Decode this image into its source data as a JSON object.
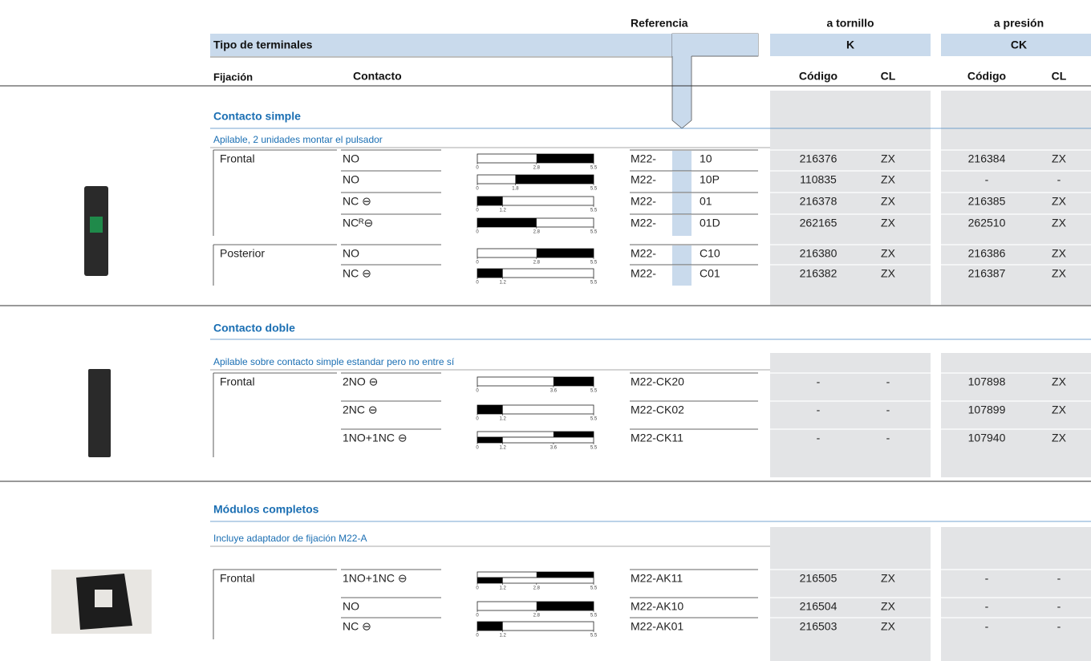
{
  "header": {
    "referencia": "Referencia",
    "a_tornillo": "a tornillo",
    "a_presion": "a presión",
    "tipo": "Tipo de terminales",
    "k": "K",
    "ck": "CK",
    "fijacion": "Fijación",
    "contacto": "Contacto",
    "codigo_k": "Código",
    "cl_k": "CL",
    "codigo_ck": "Código",
    "cl_ck": "CL"
  },
  "sections": [
    {
      "title": "Contacto simple",
      "subtitle": "Apilable, 2 unidades montar el pulsador",
      "rows": [
        {
          "fijacion": "Frontal",
          "contacto": "NO",
          "diagram": {
            "ticks": [
              0,
              2.8,
              5.5
            ],
            "tracks": [
              [
                2.8,
                5.5
              ]
            ]
          },
          "ref_prefix": "M22-",
          "ref_suffix": "10",
          "k_code": "216376",
          "k_cl": "ZX",
          "ck_code": "216384",
          "ck_cl": "ZX"
        },
        {
          "contacto": "NO",
          "diagram": {
            "ticks": [
              0,
              1.8,
              5.5
            ],
            "tracks": [
              [
                1.8,
                5.5
              ]
            ]
          },
          "ref_prefix": "M22-",
          "ref_suffix": "10P",
          "k_code": "110835",
          "k_cl": "ZX",
          "ck_code": "-",
          "ck_cl": "-"
        },
        {
          "contacto": "NC ⊖",
          "diagram": {
            "ticks": [
              0,
              1.2,
              5.5
            ],
            "tracks": [
              [
                0,
                1.2
              ]
            ]
          },
          "ref_prefix": "M22-",
          "ref_suffix": "01",
          "k_code": "216378",
          "k_cl": "ZX",
          "ck_code": "216385",
          "ck_cl": "ZX"
        },
        {
          "contacto": "NCᴿ⊖",
          "diagram": {
            "ticks": [
              0,
              2.8,
              5.5
            ],
            "tracks": [
              [
                0,
                2.8
              ]
            ]
          },
          "ref_prefix": "M22-",
          "ref_suffix": "01D",
          "k_code": "262165",
          "k_cl": "ZX",
          "ck_code": "262510",
          "ck_cl": "ZX"
        },
        {
          "fijacion": "Posterior",
          "contacto": "NO",
          "diagram": {
            "ticks": [
              0,
              2.8,
              5.5
            ],
            "tracks": [
              [
                2.8,
                5.5
              ]
            ]
          },
          "ref_prefix": "M22-",
          "ref_suffix": "C10",
          "k_code": "216380",
          "k_cl": "ZX",
          "ck_code": "216386",
          "ck_cl": "ZX"
        },
        {
          "contacto": "NC ⊖",
          "diagram": {
            "ticks": [
              0,
              1.2,
              5.5
            ],
            "tracks": [
              [
                0,
                1.2
              ]
            ]
          },
          "ref_prefix": "M22-",
          "ref_suffix": "C01",
          "k_code": "216382",
          "k_cl": "ZX",
          "ck_code": "216387",
          "ck_cl": "ZX"
        }
      ]
    },
    {
      "title": "Contacto doble",
      "subtitle": "Apilable sobre contacto simple estandar pero no entre sí",
      "rows": [
        {
          "fijacion": "Frontal",
          "contacto": "2NO ⊖",
          "diagram": {
            "ticks": [
              0,
              3.6,
              5.5
            ],
            "tracks": [
              [
                3.6,
                5.5
              ]
            ]
          },
          "ref": "M22-CK20",
          "k_code": "-",
          "k_cl": "-",
          "ck_code": "107898",
          "ck_cl": "ZX"
        },
        {
          "contacto": "2NC ⊖",
          "diagram": {
            "ticks": [
              0,
              1.2,
              5.5
            ],
            "tracks": [
              [
                0,
                1.2
              ]
            ]
          },
          "ref": "M22-CK02",
          "k_code": "-",
          "k_cl": "-",
          "ck_code": "107899",
          "ck_cl": "ZX"
        },
        {
          "contacto": "1NO+1NC ⊖",
          "diagram": {
            "ticks": [
              0,
              1.2,
              3.6,
              5.5
            ],
            "tracks": [
              [
                3.6,
                5.5
              ],
              [
                0,
                1.2
              ]
            ]
          },
          "ref": "M22-CK11",
          "k_code": "-",
          "k_cl": "-",
          "ck_code": "107940",
          "ck_cl": "ZX"
        }
      ]
    },
    {
      "title": "Módulos completos",
      "subtitle": "Incluye adaptador de fijación M22-A",
      "rows": [
        {
          "fijacion": "Frontal",
          "contacto": "1NO+1NC ⊖",
          "diagram": {
            "ticks": [
              0,
              1.2,
              2.8,
              5.5
            ],
            "tracks": [
              [
                2.8,
                5.5
              ],
              [
                0,
                1.2
              ]
            ]
          },
          "ref": "M22-AK11",
          "k_code": "216505",
          "k_cl": "ZX",
          "ck_code": "-",
          "ck_cl": "-"
        },
        {
          "contacto": "NO",
          "diagram": {
            "ticks": [
              0,
              2.8,
              5.5
            ],
            "tracks": [
              [
                2.8,
                5.5
              ]
            ]
          },
          "ref": "M22-AK10",
          "k_code": "216504",
          "k_cl": "ZX",
          "ck_code": "-",
          "ck_cl": "-"
        },
        {
          "contacto": "NC ⊖",
          "diagram": {
            "ticks": [
              0,
              1.2,
              5.5
            ],
            "tracks": [
              [
                0,
                1.2
              ]
            ]
          },
          "ref": "M22-AK01",
          "k_code": "216503",
          "k_cl": "ZX",
          "ck_code": "-",
          "ck_cl": "-"
        }
      ]
    }
  ]
}
